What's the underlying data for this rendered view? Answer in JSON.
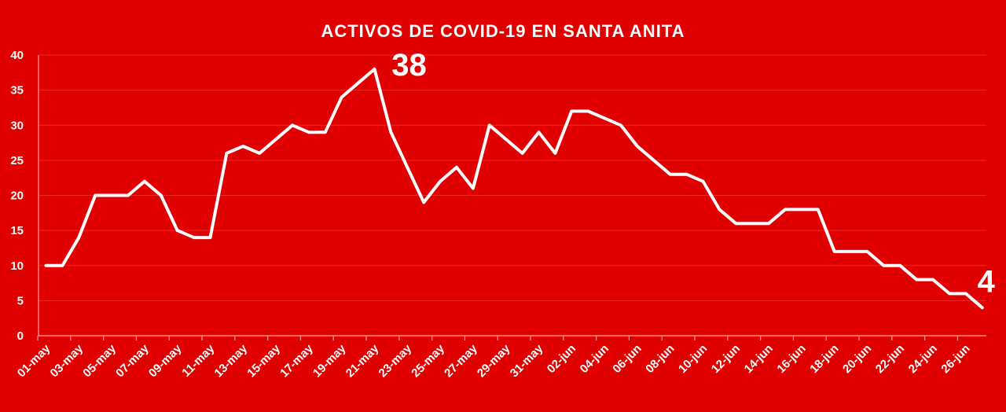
{
  "chart_data": {
    "type": "line",
    "title": "ACTIVOS DE COVID-19 EN SANTA ANITA",
    "xlabel": "",
    "ylabel": "",
    "ylim": [
      0,
      40
    ],
    "yticks": [
      0,
      5,
      10,
      15,
      20,
      25,
      30,
      35,
      40
    ],
    "grid": true,
    "legend": "none",
    "tick_labels": [
      "01-may",
      "03-may",
      "05-may",
      "07-may",
      "09-may",
      "11-may",
      "13-may",
      "15-may",
      "17-may",
      "19-may",
      "21-may",
      "23-may",
      "25-may",
      "27-may",
      "29-may",
      "31-may",
      "02-jun",
      "04-jun",
      "06-jun",
      "08-jun",
      "10-jun",
      "12-jun",
      "14-jun",
      "16-jun",
      "18-jun",
      "20-jun",
      "22-jun",
      "24-jun",
      "26-jun"
    ],
    "categories": [
      "01-may",
      "02-may",
      "03-may",
      "04-may",
      "05-may",
      "06-may",
      "07-may",
      "08-may",
      "09-may",
      "10-may",
      "11-may",
      "12-may",
      "13-may",
      "14-may",
      "15-may",
      "16-may",
      "17-may",
      "18-may",
      "19-may",
      "20-may",
      "21-may",
      "22-may",
      "23-may",
      "24-may",
      "25-may",
      "26-may",
      "27-may",
      "28-may",
      "29-may",
      "30-may",
      "31-may",
      "01-jun",
      "02-jun",
      "03-jun",
      "04-jun",
      "05-jun",
      "06-jun",
      "07-jun",
      "08-jun",
      "09-jun",
      "10-jun",
      "11-jun",
      "12-jun",
      "13-jun",
      "14-jun",
      "15-jun",
      "16-jun",
      "17-jun",
      "18-jun",
      "19-jun",
      "20-jun",
      "21-jun",
      "22-jun",
      "23-jun",
      "24-jun",
      "25-jun",
      "26-jun",
      "27-jun"
    ],
    "series": [
      {
        "name": "Activos",
        "color": "#ffffff",
        "values": [
          10,
          10,
          14,
          20,
          20,
          20,
          22,
          20,
          15,
          14,
          14,
          26,
          27,
          26,
          28,
          30,
          29,
          29,
          34,
          36,
          38,
          29,
          24,
          19,
          22,
          24,
          21,
          30,
          28,
          26,
          29,
          26,
          32,
          32,
          31,
          30,
          27,
          25,
          23,
          23,
          22,
          18,
          16,
          16,
          16,
          18,
          18,
          18,
          12,
          12,
          12,
          10,
          10,
          8,
          8,
          6,
          6,
          4
        ]
      }
    ],
    "annotations": [
      {
        "text": "38",
        "category": "21-may",
        "value": 38
      },
      {
        "text": "4",
        "category": "27-jun",
        "value": 4
      }
    ]
  }
}
